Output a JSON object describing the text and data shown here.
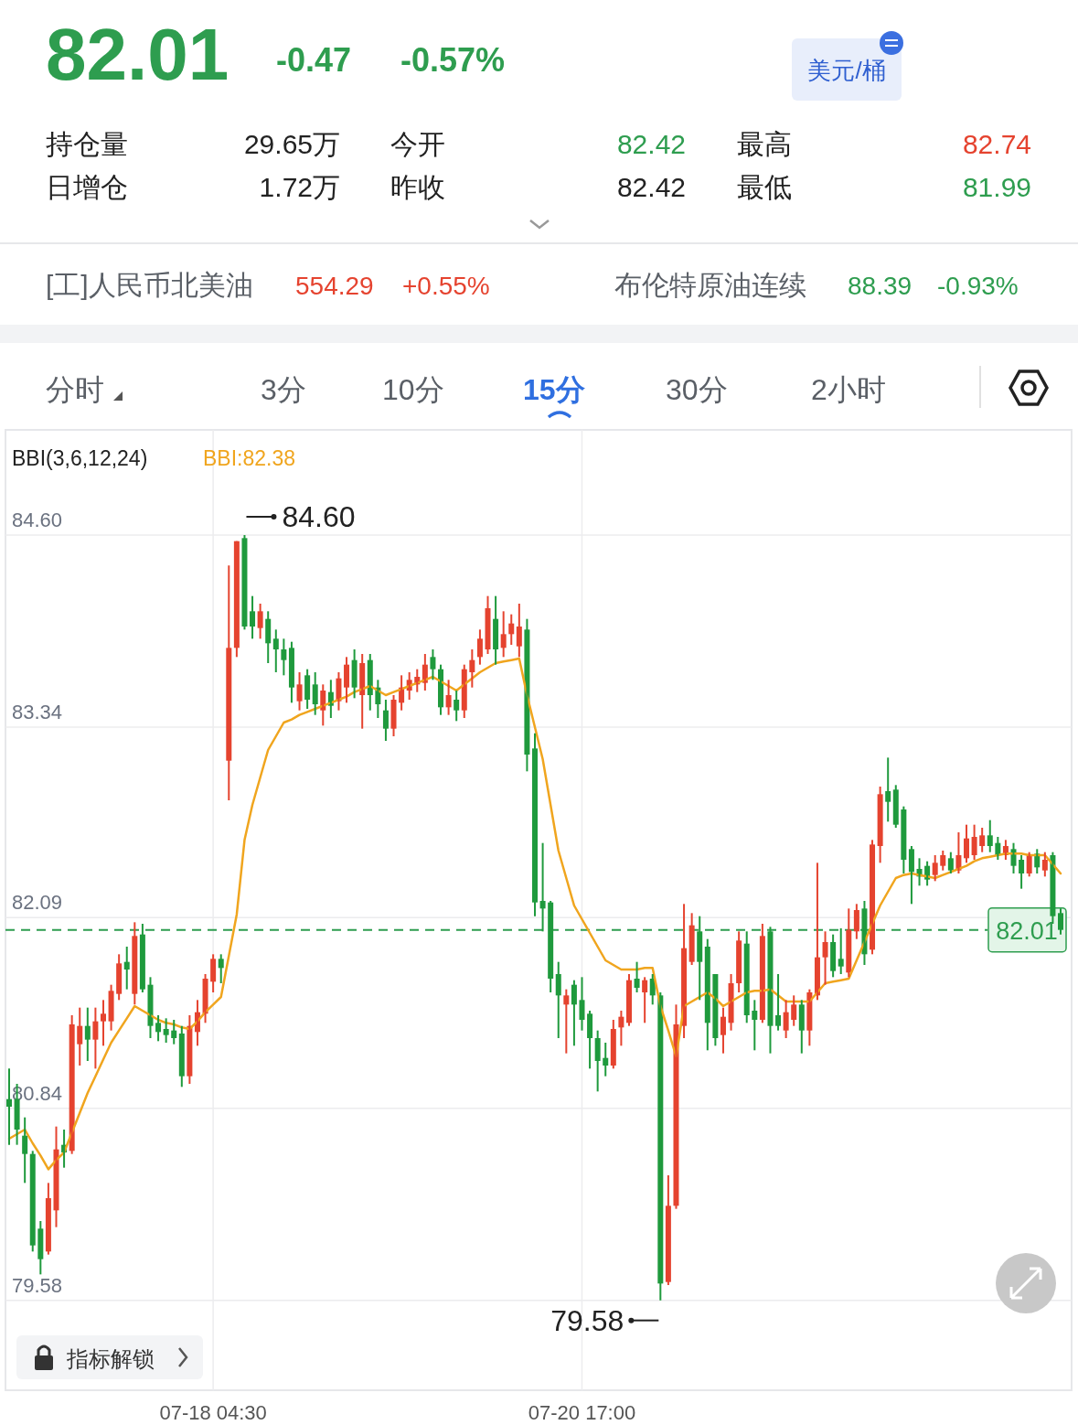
{
  "chart_data": {
    "type": "candlestick",
    "title": "82.01",
    "annotations": [
      "-0.47",
      "-0.57%",
      "美元/桶",
      "持仓量",
      "29.65万",
      "今开",
      "82.42",
      "最高",
      "82.74",
      "日增仓",
      "1.72万",
      "昨收",
      "82.42",
      "最低",
      "81.99",
      "[工]人民币北美油",
      "554.29",
      "+0.55%",
      "布伦特原油连续",
      "88.39",
      "-0.93%",
      "分时",
      "3分",
      "10分",
      "15分",
      "30分",
      "2小时",
      "BBI(3,6,12,24)",
      "指标解锁",
      "84.60",
      "79.58"
    ],
    "categories": [
      null,
      null,
      null,
      null,
      null,
      null,
      null,
      null,
      null,
      null,
      null,
      null,
      null,
      null,
      null,
      null,
      null,
      null,
      null,
      null,
      null,
      null,
      null,
      null,
      null,
      null,
      "07-18 04:30",
      null,
      null,
      null,
      null,
      null,
      null,
      null,
      null,
      null,
      null,
      null,
      null,
      null,
      null,
      null,
      null,
      null,
      null,
      null,
      null,
      null,
      null,
      null,
      null,
      null,
      null,
      null,
      null,
      null,
      null,
      null,
      null,
      null,
      null,
      null,
      null,
      null,
      null,
      null,
      null,
      null,
      null,
      null,
      null,
      null,
      null,
      "07-20 17:00",
      null,
      null,
      null,
      null,
      null,
      null,
      null,
      null,
      null,
      null,
      null,
      null,
      null,
      null,
      null,
      null,
      null,
      null,
      null,
      null,
      null,
      null,
      null,
      null,
      null,
      null,
      null,
      null,
      null,
      null,
      null,
      null,
      null,
      null,
      null,
      null,
      null,
      null,
      null,
      null,
      null,
      null,
      null,
      null,
      null,
      null,
      null,
      null,
      null,
      null,
      null,
      null,
      null,
      null,
      null,
      null,
      null,
      null,
      null,
      null,
      null
    ],
    "ohlc": [
      [
        80.9,
        81.1,
        80.6,
        80.85
      ],
      [
        80.9,
        81.0,
        80.6,
        80.7
      ],
      [
        80.66,
        80.78,
        80.35,
        80.54
      ],
      [
        80.54,
        80.56,
        79.9,
        79.94
      ],
      [
        80.05,
        80.1,
        79.75,
        79.85
      ],
      [
        79.9,
        80.35,
        79.88,
        80.25
      ],
      [
        80.17,
        80.72,
        80.06,
        80.57
      ],
      [
        80.6,
        80.7,
        80.45,
        80.55
      ],
      [
        80.56,
        81.45,
        80.54,
        81.39
      ],
      [
        81.26,
        81.5,
        81.12,
        81.38
      ],
      [
        81.38,
        81.5,
        81.15,
        81.29
      ],
      [
        81.29,
        81.5,
        81.1,
        81.41
      ],
      [
        81.41,
        81.55,
        81.25,
        81.46
      ],
      [
        81.41,
        81.65,
        81.35,
        81.61
      ],
      [
        81.59,
        81.85,
        81.55,
        81.79
      ],
      [
        81.8,
        81.9,
        81.62,
        81.75
      ],
      [
        81.59,
        82.06,
        81.52,
        81.97
      ],
      [
        81.98,
        82.05,
        81.6,
        81.62
      ],
      [
        81.65,
        81.7,
        81.3,
        81.38
      ],
      [
        81.4,
        81.45,
        81.28,
        81.34
      ],
      [
        81.36,
        81.43,
        81.27,
        81.32
      ],
      [
        81.35,
        81.42,
        81.26,
        81.3
      ],
      [
        81.33,
        81.38,
        80.98,
        81.05
      ],
      [
        81.05,
        81.45,
        81.0,
        81.38
      ],
      [
        81.34,
        81.55,
        81.25,
        81.47
      ],
      [
        81.46,
        81.72,
        81.4,
        81.69
      ],
      [
        81.67,
        81.85,
        81.6,
        81.82
      ],
      [
        81.82,
        81.85,
        81.66,
        81.76
      ],
      [
        83.12,
        84.4,
        82.86,
        83.86
      ],
      [
        83.86,
        84.56,
        83.8,
        84.56
      ],
      [
        84.58,
        84.6,
        83.98,
        84.0
      ],
      [
        84.1,
        84.2,
        83.92,
        84.0
      ],
      [
        83.99,
        84.15,
        83.92,
        84.1
      ],
      [
        84.05,
        84.1,
        83.76,
        83.89
      ],
      [
        83.92,
        83.98,
        83.7,
        83.85
      ],
      [
        83.85,
        83.92,
        83.68,
        83.78
      ],
      [
        83.86,
        83.9,
        83.5,
        83.6
      ],
      [
        83.51,
        83.7,
        83.45,
        83.62
      ],
      [
        83.68,
        83.72,
        83.46,
        83.52
      ],
      [
        83.62,
        83.7,
        83.42,
        83.49
      ],
      [
        83.45,
        83.62,
        83.35,
        83.58
      ],
      [
        83.57,
        83.65,
        83.4,
        83.48
      ],
      [
        83.51,
        83.7,
        83.45,
        83.66
      ],
      [
        83.6,
        83.8,
        83.5,
        83.75
      ],
      [
        83.78,
        83.85,
        83.53,
        83.6
      ],
      [
        83.55,
        83.82,
        83.33,
        83.76
      ],
      [
        83.78,
        83.82,
        83.45,
        83.55
      ],
      [
        83.6,
        83.65,
        83.4,
        83.49
      ],
      [
        83.45,
        83.52,
        83.25,
        83.33
      ],
      [
        83.33,
        83.55,
        83.28,
        83.52
      ],
      [
        83.5,
        83.68,
        83.45,
        83.6
      ],
      [
        83.58,
        83.7,
        83.52,
        83.65
      ],
      [
        83.62,
        83.72,
        83.57,
        83.67
      ],
      [
        83.63,
        83.82,
        83.58,
        83.75
      ],
      [
        83.8,
        83.85,
        83.65,
        83.72
      ],
      [
        83.72,
        83.75,
        83.42,
        83.47
      ],
      [
        83.47,
        83.65,
        83.42,
        83.55
      ],
      [
        83.52,
        83.58,
        83.38,
        83.45
      ],
      [
        83.45,
        83.75,
        83.4,
        83.72
      ],
      [
        83.7,
        83.85,
        83.6,
        83.78
      ],
      [
        83.8,
        83.98,
        83.75,
        83.92
      ],
      [
        83.85,
        84.2,
        83.82,
        84.12
      ],
      [
        84.05,
        84.2,
        83.75,
        83.85
      ],
      [
        83.86,
        84.1,
        83.8,
        83.95
      ],
      [
        83.95,
        84.08,
        83.88,
        84.02
      ],
      [
        83.87,
        84.15,
        83.8,
        84.0
      ],
      [
        83.98,
        84.05,
        83.05,
        83.16
      ],
      [
        83.2,
        83.3,
        82.1,
        82.19
      ],
      [
        82.2,
        82.58,
        82.0,
        82.15
      ],
      [
        82.19,
        82.2,
        81.6,
        81.69
      ],
      [
        81.72,
        81.8,
        81.3,
        81.58
      ],
      [
        81.52,
        81.62,
        81.2,
        81.58
      ],
      [
        81.65,
        81.68,
        81.25,
        81.52
      ],
      [
        81.55,
        81.7,
        81.35,
        81.42
      ],
      [
        81.46,
        81.48,
        81.1,
        81.3
      ],
      [
        81.3,
        81.35,
        80.95,
        81.15
      ],
      [
        81.17,
        81.27,
        81.05,
        81.12
      ],
      [
        81.12,
        81.42,
        81.1,
        81.36
      ],
      [
        81.37,
        81.48,
        81.25,
        81.44
      ],
      [
        81.4,
        81.72,
        81.38,
        81.68
      ],
      [
        81.69,
        81.8,
        81.6,
        81.63
      ],
      [
        81.6,
        81.7,
        81.4,
        81.68
      ],
      [
        81.69,
        81.72,
        81.52,
        81.58
      ],
      [
        81.58,
        81.6,
        79.58,
        79.69
      ],
      [
        79.7,
        80.4,
        79.68,
        80.2
      ],
      [
        80.2,
        81.52,
        80.18,
        81.39
      ],
      [
        81.38,
        82.18,
        81.3,
        81.89
      ],
      [
        81.8,
        82.12,
        81.78,
        82.04
      ],
      [
        82.0,
        82.1,
        81.55,
        81.8
      ],
      [
        81.9,
        81.95,
        81.22,
        81.4
      ],
      [
        81.72,
        81.72,
        81.25,
        81.3
      ],
      [
        81.32,
        81.5,
        81.2,
        81.44
      ],
      [
        81.4,
        81.72,
        81.35,
        81.66
      ],
      [
        81.66,
        82.0,
        81.6,
        81.94
      ],
      [
        81.92,
        82.0,
        81.4,
        81.45
      ],
      [
        81.48,
        81.55,
        81.22,
        81.42
      ],
      [
        81.42,
        82.05,
        81.4,
        81.97
      ],
      [
        82.0,
        82.03,
        81.2,
        81.38
      ],
      [
        81.45,
        81.72,
        81.35,
        81.38
      ],
      [
        81.35,
        81.55,
        81.3,
        81.47
      ],
      [
        81.42,
        81.58,
        81.38,
        81.52
      ],
      [
        81.52,
        81.55,
        81.2,
        81.35
      ],
      [
        81.35,
        81.62,
        81.25,
        81.6
      ],
      [
        81.58,
        82.45,
        81.55,
        81.83
      ],
      [
        81.83,
        82.0,
        81.65,
        81.93
      ],
      [
        81.93,
        81.98,
        81.7,
        81.74
      ],
      [
        81.82,
        82.02,
        81.72,
        81.77
      ],
      [
        81.73,
        82.15,
        81.7,
        82.01
      ],
      [
        82.0,
        82.18,
        81.95,
        82.14
      ],
      [
        82.15,
        82.2,
        81.78,
        81.85
      ],
      [
        81.88,
        82.6,
        81.85,
        82.57
      ],
      [
        82.56,
        82.95,
        82.45,
        82.9
      ],
      [
        82.92,
        83.14,
        82.72,
        82.85
      ],
      [
        82.93,
        82.96,
        82.68,
        82.7
      ],
      [
        82.8,
        82.82,
        82.38,
        82.47
      ],
      [
        82.54,
        82.56,
        82.18,
        82.39
      ],
      [
        82.41,
        82.48,
        82.3,
        82.36
      ],
      [
        82.43,
        82.46,
        82.3,
        82.34
      ],
      [
        82.37,
        82.5,
        82.33,
        82.45
      ],
      [
        82.43,
        82.53,
        82.4,
        82.5
      ],
      [
        82.48,
        82.52,
        82.38,
        82.4
      ],
      [
        82.4,
        82.65,
        82.38,
        82.5
      ],
      [
        82.48,
        82.7,
        82.45,
        82.61
      ],
      [
        82.5,
        82.7,
        82.47,
        82.62
      ],
      [
        82.56,
        82.68,
        82.52,
        82.63
      ],
      [
        82.63,
        82.73,
        82.52,
        82.56
      ],
      [
        82.58,
        82.62,
        82.47,
        82.5
      ],
      [
        82.5,
        82.6,
        82.47,
        82.56
      ],
      [
        82.54,
        82.58,
        82.38,
        82.43
      ],
      [
        82.47,
        82.5,
        82.28,
        82.38
      ],
      [
        82.38,
        82.52,
        82.36,
        82.5
      ],
      [
        82.51,
        82.54,
        82.38,
        82.42
      ],
      [
        82.4,
        82.52,
        82.36,
        82.47
      ],
      [
        82.5,
        82.52,
        82.05,
        82.1
      ],
      [
        82.12,
        82.15,
        81.98,
        82.01
      ]
    ],
    "colors": [
      "#1f9a3d",
      "#1f9a3d",
      "#1f9a3d",
      "#1f9a3d",
      "#1f9a3d",
      "#e5432f",
      "#e5432f",
      "#1f9a3d",
      "#e5432f",
      "#e5432f",
      "#1f9a3d",
      "#e5432f",
      "#e5432f",
      "#e5432f",
      "#e5432f",
      "#1f9a3d",
      "#e5432f",
      "#1f9a3d",
      "#1f9a3d",
      "#1f9a3d",
      "#1f9a3d",
      "#1f9a3d",
      "#1f9a3d",
      "#e5432f",
      "#e5432f",
      "#e5432f",
      "#e5432f",
      "#1f9a3d",
      "#e5432f",
      "#e5432f",
      "#1f9a3d",
      "#1f9a3d",
      "#e5432f",
      "#1f9a3d",
      "#1f9a3d",
      "#1f9a3d",
      "#1f9a3d",
      "#e5432f",
      "#1f9a3d",
      "#1f9a3d",
      "#e5432f",
      "#1f9a3d",
      "#e5432f",
      "#e5432f",
      "#1f9a3d",
      "#e5432f",
      "#1f9a3d",
      "#1f9a3d",
      "#1f9a3d",
      "#e5432f",
      "#e5432f",
      "#e5432f",
      "#e5432f",
      "#e5432f",
      "#1f9a3d",
      "#1f9a3d",
      "#e5432f",
      "#1f9a3d",
      "#e5432f",
      "#e5432f",
      "#e5432f",
      "#e5432f",
      "#1f9a3d",
      "#e5432f",
      "#e5432f",
      "#e5432f",
      "#1f9a3d",
      "#1f9a3d",
      "#1f9a3d",
      "#1f9a3d",
      "#1f9a3d",
      "#e5432f",
      "#1f9a3d",
      "#1f9a3d",
      "#1f9a3d",
      "#1f9a3d",
      "#1f9a3d",
      "#e5432f",
      "#e5432f",
      "#e5432f",
      "#1f9a3d",
      "#e5432f",
      "#1f9a3d",
      "#1f9a3d",
      "#e5432f",
      "#e5432f",
      "#e5432f",
      "#e5432f",
      "#1f9a3d",
      "#1f9a3d",
      "#1f9a3d",
      "#e5432f",
      "#e5432f",
      "#e5432f",
      "#1f9a3d",
      "#1f9a3d",
      "#e5432f",
      "#1f9a3d",
      "#1f9a3d",
      "#e5432f",
      "#e5432f",
      "#1f9a3d",
      "#e5432f",
      "#e5432f",
      "#e5432f",
      "#1f9a3d",
      "#1f9a3d",
      "#e5432f",
      "#e5432f",
      "#1f9a3d",
      "#e5432f",
      "#e5432f",
      "#1f9a3d",
      "#1f9a3d",
      "#1f9a3d",
      "#1f9a3d",
      "#1f9a3d",
      "#1f9a3d",
      "#e5432f",
      "#e5432f",
      "#1f9a3d",
      "#e5432f",
      "#e5432f",
      "#e5432f",
      "#e5432f",
      "#1f9a3d",
      "#1f9a3d",
      "#e5432f",
      "#1f9a3d",
      "#1f9a3d",
      "#e5432f",
      "#1f9a3d",
      "#e5432f",
      "#1f9a3d",
      "#1f9a3d"
    ],
    "series": [
      {
        "type": "line",
        "name": "BBI:82.38",
        "color": "#f0a51e",
        "values": [
          80.64,
          80.67,
          80.7,
          80.61,
          80.53,
          80.44,
          80.5,
          80.55,
          80.68,
          80.81,
          80.94,
          81.05,
          81.16,
          81.27,
          81.35,
          81.43,
          81.51,
          81.48,
          81.45,
          81.42,
          81.4,
          81.39,
          81.37,
          81.36,
          81.41,
          81.47,
          81.52,
          81.57,
          81.84,
          82.11,
          82.6,
          82.83,
          83.01,
          83.19,
          83.28,
          83.37,
          83.39,
          83.42,
          83.44,
          83.46,
          83.48,
          83.5,
          83.52,
          83.54,
          83.57,
          83.59,
          83.61,
          83.58,
          83.55,
          83.57,
          83.59,
          83.61,
          83.63,
          83.65,
          83.67,
          83.64,
          83.61,
          83.58,
          83.62,
          83.66,
          83.7,
          83.73,
          83.76,
          83.77,
          83.78,
          83.79,
          83.55,
          83.34,
          83.13,
          82.83,
          82.53,
          82.35,
          82.17,
          82.08,
          81.99,
          81.9,
          81.81,
          81.78,
          81.75,
          81.75,
          81.75,
          81.76,
          81.76,
          81.51,
          81.35,
          81.18,
          81.51,
          81.54,
          81.57,
          81.6,
          81.56,
          81.51,
          81.54,
          81.57,
          81.6,
          81.61,
          81.61,
          81.62,
          81.58,
          81.54,
          81.54,
          81.54,
          81.54,
          81.6,
          81.66,
          81.67,
          81.68,
          81.69,
          81.81,
          81.93,
          82.05,
          82.17,
          82.26,
          82.35,
          82.37,
          82.38,
          82.37,
          82.36,
          82.35,
          82.37,
          82.39,
          82.41,
          82.43,
          82.46,
          82.48,
          82.49,
          82.5,
          82.51,
          82.51,
          82.51,
          82.5,
          82.5,
          82.5,
          82.44,
          82.38
        ]
      }
    ],
    "ylim": [
      78.99,
      85.29
    ],
    "yticks": [
      {
        "value": 84.6,
        "label": "84.60"
      },
      {
        "value": 83.34,
        "label": "83.34"
      },
      {
        "value": 82.09,
        "label": "82.09"
      },
      {
        "value": 80.84,
        "label": "80.84"
      },
      {
        "value": 79.58,
        "label": "79.58"
      }
    ],
    "ref_lines": [
      {
        "axis": "y",
        "value": 82.01,
        "label": "82.01",
        "color": "#2e9d4f",
        "line_style": "dashed"
      }
    ],
    "grid": true,
    "line_style": "solid"
  }
}
